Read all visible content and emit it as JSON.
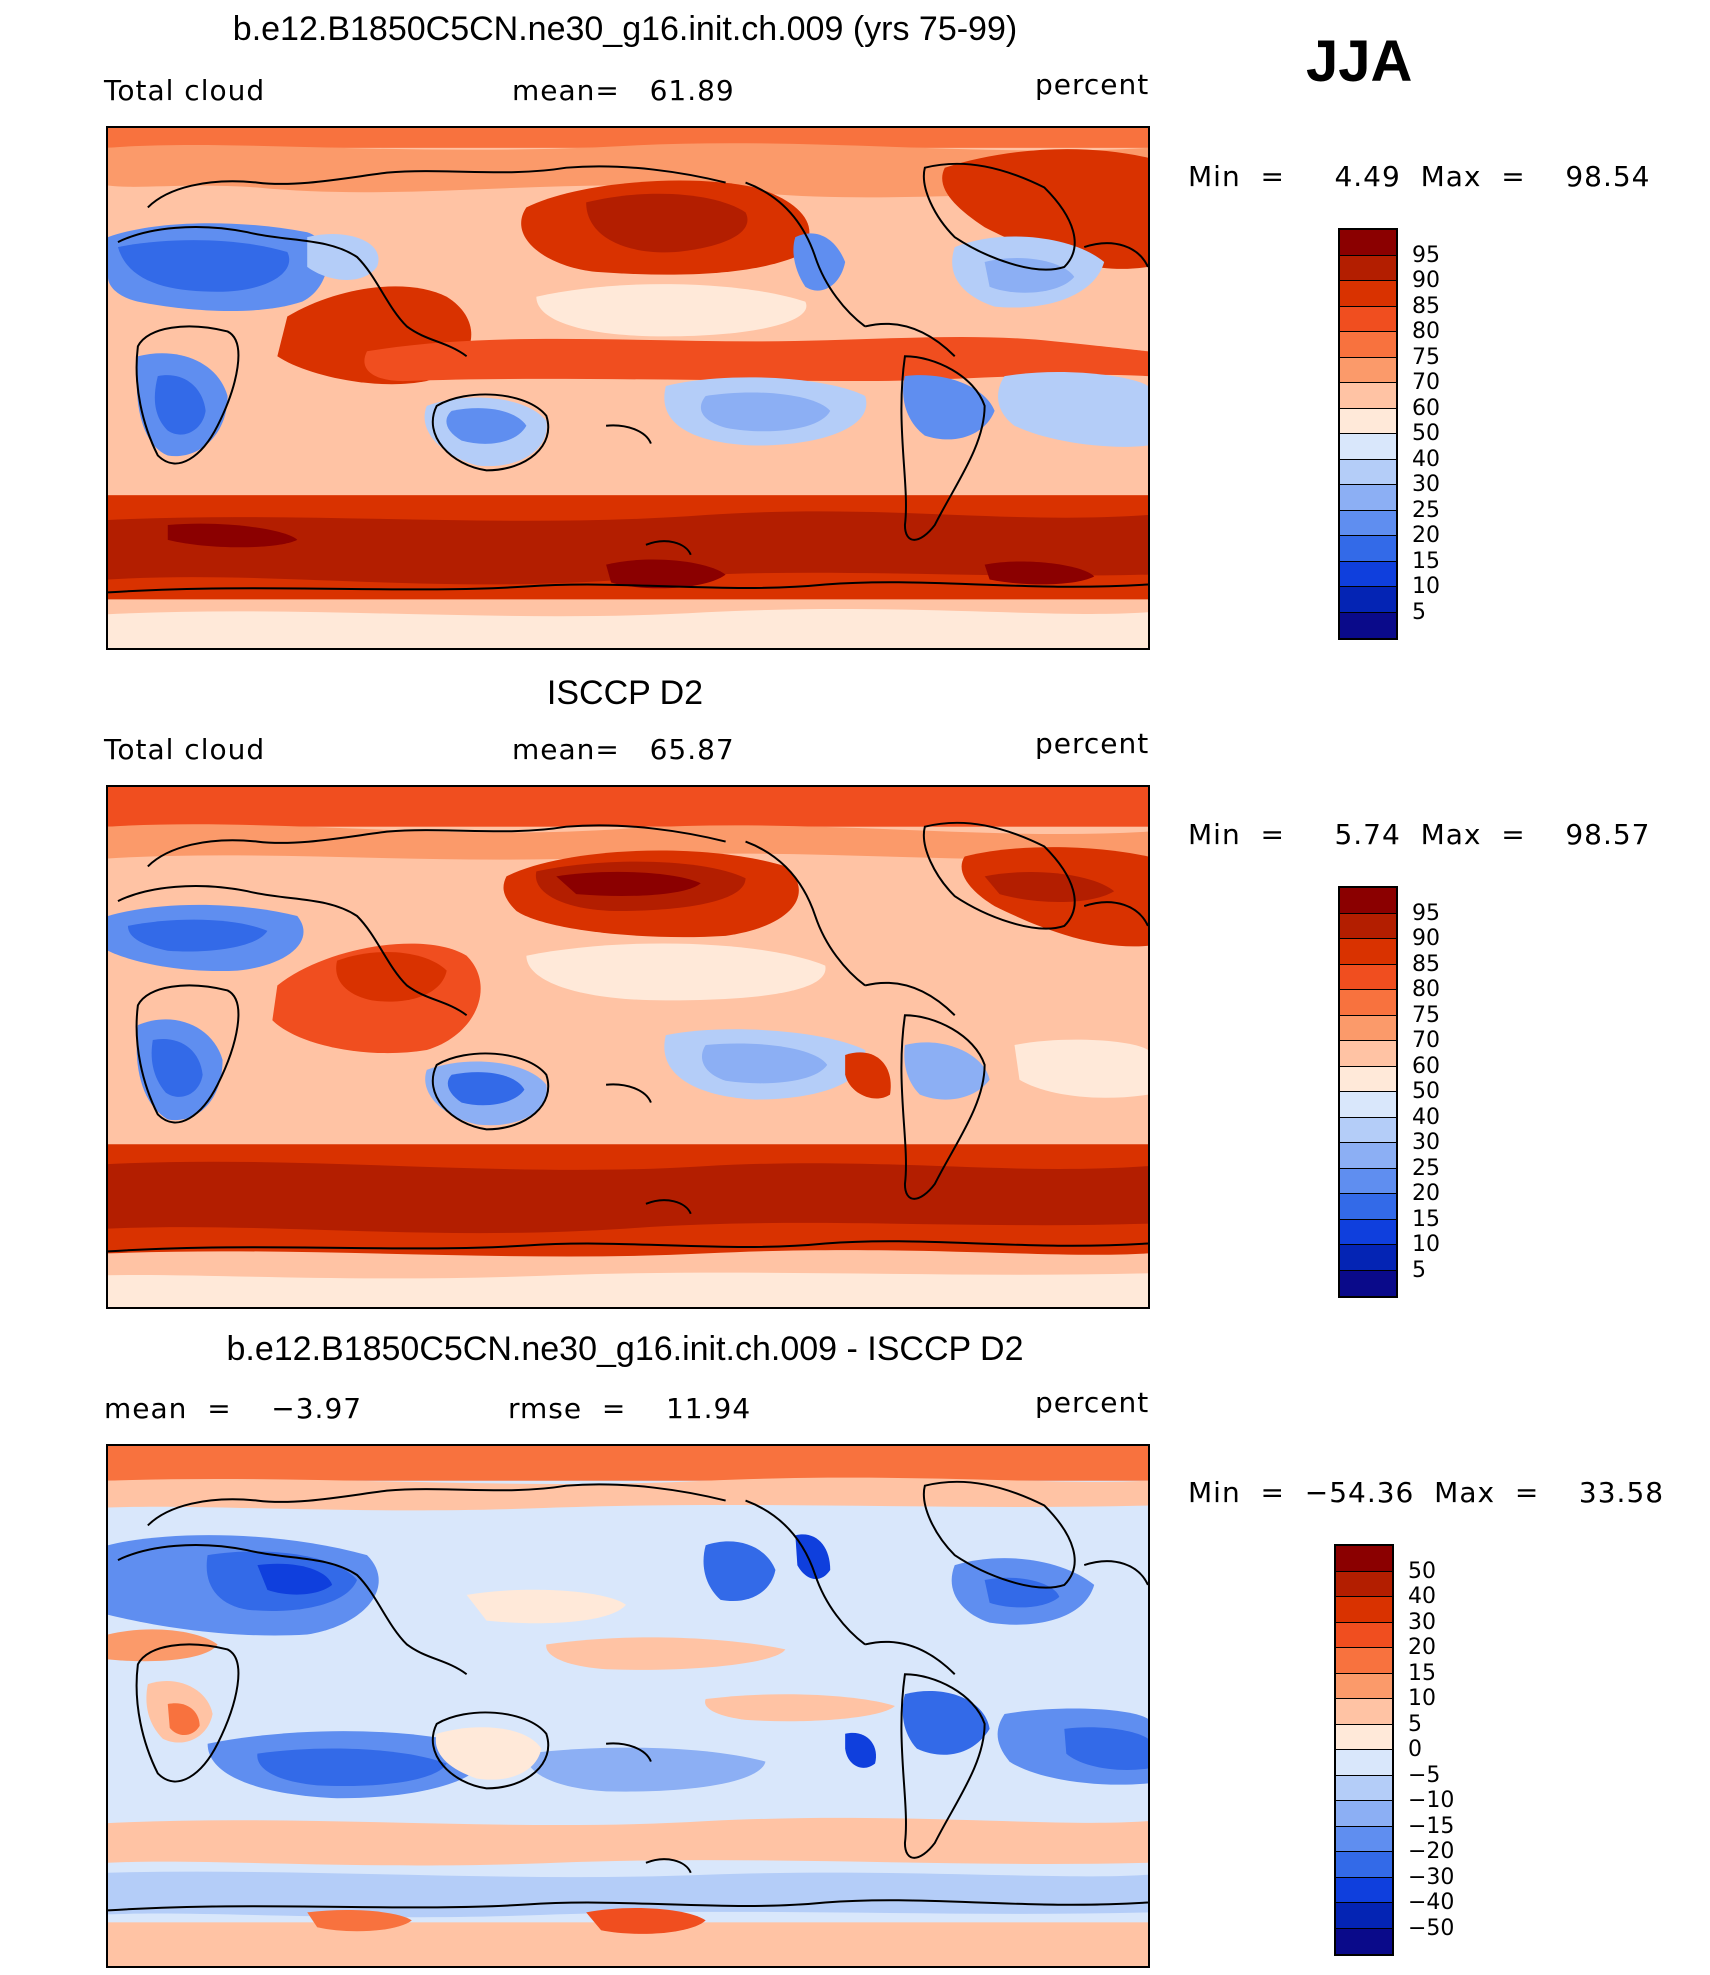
{
  "season": "JJA",
  "panels": [
    {
      "title": "b.e12.B1850C5CN.ne30_g16.init.ch.009 (yrs 75-99)",
      "left_label": "Total cloud",
      "center_label": "mean=   61.89",
      "right_label": "percent",
      "minmax": "Min  =     4.49  Max  =    98.54",
      "levels": [
        "95",
        "90",
        "85",
        "80",
        "75",
        "70",
        "60",
        "50",
        "40",
        "30",
        "25",
        "20",
        "15",
        "10",
        "5"
      ],
      "kind": "abs",
      "background": "#ffc3a4"
    },
    {
      "title": "ISCCP D2",
      "left_label": "Total cloud",
      "center_label": "mean=   65.87",
      "right_label": "percent",
      "minmax": "Min  =     5.74  Max  =    98.57",
      "levels": [
        "95",
        "90",
        "85",
        "80",
        "75",
        "70",
        "60",
        "50",
        "40",
        "30",
        "25",
        "20",
        "15",
        "10",
        "5"
      ],
      "kind": "abs",
      "background": "#ffc3a4"
    },
    {
      "title": "b.e12.B1850C5CN.ne30_g16.init.ch.009 - ISCCP D2",
      "left_label": "mean  =    −3.97",
      "center_label": "rmse  =    11.94",
      "right_label": "percent",
      "minmax": "Min  =  −54.36  Max  =    33.58",
      "levels": [
        "50",
        "40",
        "30",
        "20",
        "15",
        "10",
        "5",
        "0",
        "−5",
        "−10",
        "−15",
        "−20",
        "−30",
        "−40",
        "−50"
      ],
      "kind": "diff",
      "background": "#d9e7fb"
    }
  ],
  "colorbar_colors": [
    "#8b0000",
    "#b31e00",
    "#d93200",
    "#f04e1f",
    "#f8723e",
    "#fb9a6a",
    "#ffc3a4",
    "#ffe9d9",
    "#d9e7fb",
    "#b4cdf8",
    "#8caff4",
    "#5f8ef0",
    "#336ae8",
    "#0f3fdd",
    "#0424b4",
    "#0a0a8a"
  ]
}
